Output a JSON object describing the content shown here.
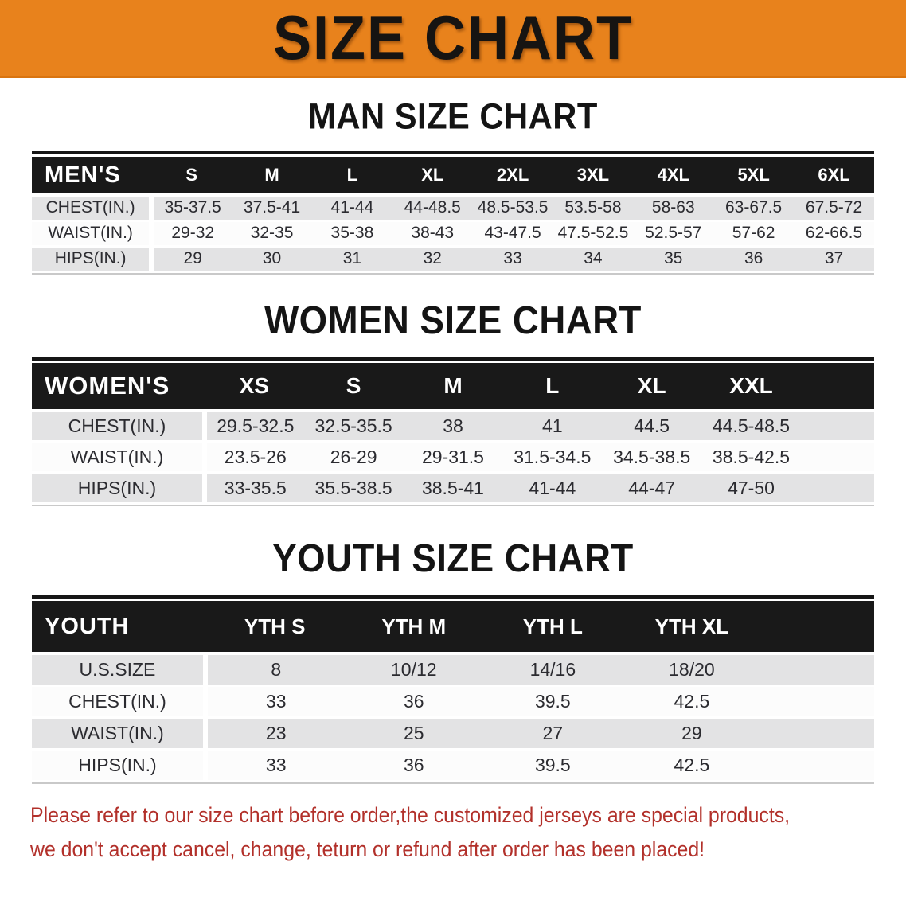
{
  "banner": {
    "title": "SIZE CHART"
  },
  "sections": [
    {
      "heading": "MAN SIZE CHART",
      "table": {
        "header_label": "MEN'S",
        "columns": [
          "S",
          "M",
          "L",
          "XL",
          "2XL",
          "3XL",
          "4XL",
          "5XL",
          "6XL"
        ],
        "rows": [
          {
            "label": "CHEST(IN.)",
            "values": [
              "35-37.5",
              "37.5-41",
              "41-44",
              "44-48.5",
              "48.5-53.5",
              "53.5-58",
              "58-63",
              "63-67.5",
              "67.5-72"
            ]
          },
          {
            "label": "WAIST(IN.)",
            "values": [
              "29-32",
              "32-35",
              "35-38",
              "38-43",
              "43-47.5",
              "47.5-52.5",
              "52.5-57",
              "57-62",
              "62-66.5"
            ]
          },
          {
            "label": "HIPS(IN.)",
            "values": [
              "29",
              "30",
              "31",
              "32",
              "33",
              "34",
              "35",
              "36",
              "37"
            ]
          }
        ]
      }
    },
    {
      "heading": "WOMEN SIZE CHART",
      "table": {
        "header_label": "WOMEN'S",
        "columns": [
          "XS",
          "S",
          "M",
          "L",
          "XL",
          "XXL"
        ],
        "rows": [
          {
            "label": "CHEST(IN.)",
            "values": [
              "29.5-32.5",
              "32.5-35.5",
              "38",
              "41",
              "44.5",
              "44.5-48.5"
            ]
          },
          {
            "label": "WAIST(IN.)",
            "values": [
              "23.5-26",
              "26-29",
              "29-31.5",
              "31.5-34.5",
              "34.5-38.5",
              "38.5-42.5"
            ]
          },
          {
            "label": "HIPS(IN.)",
            "values": [
              "33-35.5",
              "35.5-38.5",
              "38.5-41",
              "41-44",
              "44-47",
              "47-50"
            ]
          }
        ]
      }
    },
    {
      "heading": "YOUTH SIZE CHART",
      "table": {
        "header_label": "YOUTH",
        "columns": [
          "YTH S",
          "YTH M",
          "YTH L",
          "YTH XL"
        ],
        "rows": [
          {
            "label": "U.S.SIZE",
            "values": [
              "8",
              "10/12",
              "14/16",
              "18/20"
            ]
          },
          {
            "label": "CHEST(IN.)",
            "values": [
              "33",
              "36",
              "39.5",
              "42.5"
            ]
          },
          {
            "label": "WAIST(IN.)",
            "values": [
              "23",
              "25",
              "27",
              "29"
            ]
          },
          {
            "label": "HIPS(IN.)",
            "values": [
              "33",
              "36",
              "39.5",
              "42.5"
            ]
          }
        ]
      }
    }
  ],
  "disclaimer": {
    "line1": "Please refer to our size chart before order,the customized jerseys are special products,",
    "line2": "we don't accept cancel, change, teturn or refund after order has been placed!"
  },
  "colors": {
    "banner_bg": "#E8821C",
    "table_header_bg": "#191919",
    "stripe_row_bg": "#E3E3E4",
    "disclaimer_text": "#B2302A"
  }
}
